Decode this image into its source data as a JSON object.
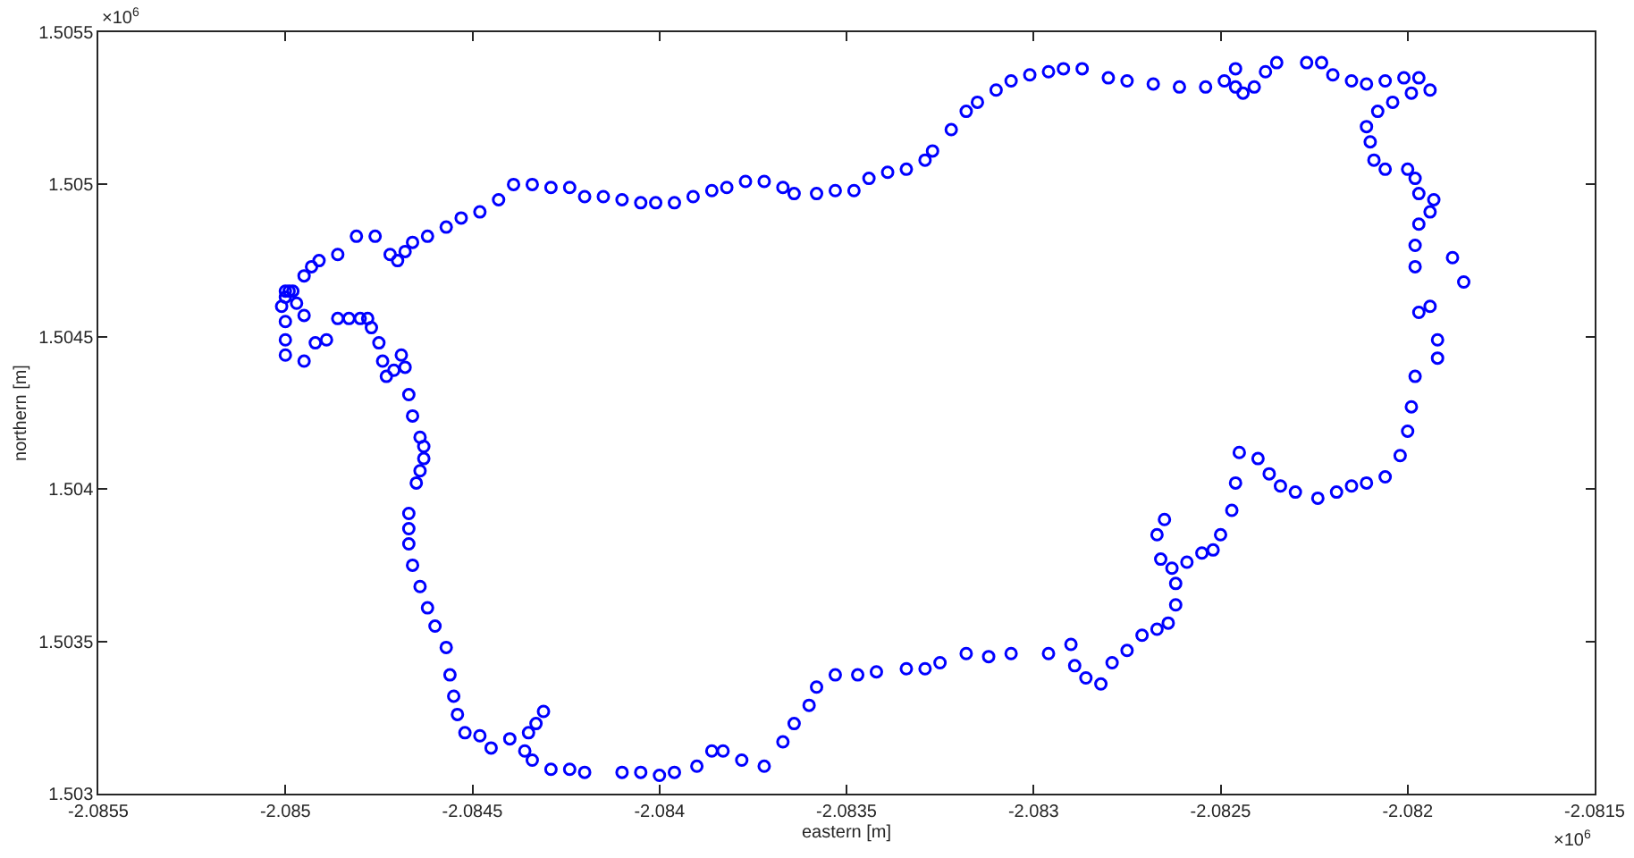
{
  "chart_data": {
    "type": "scatter",
    "xlabel": "eastern [m]",
    "ylabel": "northern [m]",
    "annotations": [
      "×10$^{6}$",
      "×10$^{6}$"
    ],
    "marker": "circle",
    "grid": false,
    "xlim": [
      -2.0855,
      -2.0815
    ],
    "xticks": [
      -2.0855,
      -2.085,
      -2.0845,
      -2.084,
      -2.0835,
      -2.083,
      -2.0825,
      -2.082,
      -2.0815
    ],
    "ylim": [
      1.503,
      1.5055
    ],
    "yticks": [
      1.503,
      1.5035,
      1.504,
      1.5045,
      1.505,
      1.5055
    ],
    "series": [
      {
        "color": "#0000ff",
        "x": [
          -2.085,
          -2.08501,
          -2.085,
          -2.08499,
          -2.08497,
          -2.08495,
          -2.085,
          -2.085,
          -2.085,
          -2.08495,
          -2.08492,
          -2.08489,
          -2.08486,
          -2.08483,
          -2.0848,
          -2.08478,
          -2.08477,
          -2.08475,
          -2.08474,
          -2.08473,
          -2.08471,
          -2.08469,
          -2.08468,
          -2.08467,
          -2.08466,
          -2.08464,
          -2.08463,
          -2.08463,
          -2.08464,
          -2.08465,
          -2.08467,
          -2.08467,
          -2.08467,
          -2.08466,
          -2.08464,
          -2.08462,
          -2.0846,
          -2.08457,
          -2.08456,
          -2.08455,
          -2.08454,
          -2.08452,
          -2.08448,
          -2.08445,
          -2.0844,
          -2.08436,
          -2.08435,
          -2.08433,
          -2.08431,
          -2.08434,
          -2.08429,
          -2.08424,
          -2.0842,
          -2.0841,
          -2.08405,
          -2.084,
          -2.08396,
          -2.0839,
          -2.08386,
          -2.08383,
          -2.08378,
          -2.08372,
          -2.08367,
          -2.08364,
          -2.0836,
          -2.08358,
          -2.08353,
          -2.08347,
          -2.08342,
          -2.08334,
          -2.08329,
          -2.08325,
          -2.08318,
          -2.08312,
          -2.08306,
          -2.08296,
          -2.0829,
          -2.08289,
          -2.08286,
          -2.08282,
          -2.08279,
          -2.08275,
          -2.08271,
          -2.08267,
          -2.08264,
          -2.08262,
          -2.08262,
          -2.08263,
          -2.08266,
          -2.08267,
          -2.08265,
          -2.08259,
          -2.08255,
          -2.08252,
          -2.0825,
          -2.08247,
          -2.08246,
          -2.08245,
          -2.0824,
          -2.08237,
          -2.08234,
          -2.0823,
          -2.08224,
          -2.08219,
          -2.08215,
          -2.08211,
          -2.08206,
          -2.08202,
          -2.082,
          -2.08199,
          -2.08198,
          -2.08192,
          -2.08192,
          -2.08197,
          -2.08194,
          -2.08185,
          -2.08188,
          -2.08198,
          -2.08198,
          -2.08197,
          -2.08194,
          -2.08193,
          -2.08197,
          -2.08198,
          -2.082,
          -2.08206,
          -2.08209,
          -2.0821,
          -2.08211,
          -2.08208,
          -2.08204,
          -2.08199,
          -2.08194,
          -2.08197,
          -2.08201,
          -2.08206,
          -2.08211,
          -2.08215,
          -2.0822,
          -2.08223,
          -2.08227,
          -2.08235,
          -2.08238,
          -2.08241,
          -2.08244,
          -2.08246,
          -2.08246,
          -2.08249,
          -2.08254,
          -2.08261,
          -2.08268,
          -2.08275,
          -2.0828,
          -2.08287,
          -2.08292,
          -2.08296,
          -2.08301,
          -2.08306,
          -2.0831,
          -2.08315,
          -2.08318,
          -2.08322,
          -2.08327,
          -2.08329,
          -2.08334,
          -2.08339,
          -2.08344,
          -2.08348,
          -2.08353,
          -2.08358,
          -2.08364,
          -2.08367,
          -2.08372,
          -2.08377,
          -2.08382,
          -2.08386,
          -2.08391,
          -2.08396,
          -2.08401,
          -2.08405,
          -2.0841,
          -2.08415,
          -2.0842,
          -2.08424,
          -2.08429,
          -2.08434,
          -2.08439,
          -2.08443,
          -2.08448,
          -2.08453,
          -2.08457,
          -2.08462,
          -2.08466,
          -2.08468,
          -2.0847,
          -2.08472,
          -2.08476,
          -2.08481,
          -2.08486,
          -2.08491,
          -2.08493,
          -2.08495,
          -2.08498
        ],
        "values": [
          1.50463,
          1.5046,
          1.50465,
          1.50465,
          1.50461,
          1.50457,
          1.50455,
          1.50449,
          1.50444,
          1.50442,
          1.50448,
          1.50449,
          1.50456,
          1.50456,
          1.50456,
          1.50456,
          1.50453,
          1.50448,
          1.50442,
          1.50437,
          1.50439,
          1.50444,
          1.5044,
          1.50431,
          1.50424,
          1.50417,
          1.50414,
          1.5041,
          1.50406,
          1.50402,
          1.50392,
          1.50387,
          1.50382,
          1.50375,
          1.50368,
          1.50361,
          1.50355,
          1.50348,
          1.50339,
          1.50332,
          1.50326,
          1.5032,
          1.50319,
          1.50315,
          1.50318,
          1.50314,
          1.5032,
          1.50323,
          1.50327,
          1.50311,
          1.50308,
          1.50308,
          1.50307,
          1.50307,
          1.50307,
          1.50306,
          1.50307,
          1.50309,
          1.50314,
          1.50314,
          1.50311,
          1.50309,
          1.50317,
          1.50323,
          1.50329,
          1.50335,
          1.50339,
          1.50339,
          1.5034,
          1.50341,
          1.50341,
          1.50343,
          1.50346,
          1.50345,
          1.50346,
          1.50346,
          1.50349,
          1.50342,
          1.50338,
          1.50336,
          1.50343,
          1.50347,
          1.50352,
          1.50354,
          1.50356,
          1.50362,
          1.50369,
          1.50374,
          1.50377,
          1.50385,
          1.5039,
          1.50376,
          1.50379,
          1.5038,
          1.50385,
          1.50393,
          1.50402,
          1.50412,
          1.5041,
          1.50405,
          1.50401,
          1.50399,
          1.50397,
          1.50399,
          1.50401,
          1.50402,
          1.50404,
          1.50411,
          1.50419,
          1.50427,
          1.50437,
          1.50443,
          1.50449,
          1.50458,
          1.5046,
          1.50468,
          1.50476,
          1.50473,
          1.5048,
          1.50487,
          1.50491,
          1.50495,
          1.50497,
          1.50502,
          1.50505,
          1.50505,
          1.50508,
          1.50514,
          1.50519,
          1.50524,
          1.50527,
          1.5053,
          1.50531,
          1.50535,
          1.50535,
          1.50534,
          1.50533,
          1.50534,
          1.50536,
          1.5054,
          1.5054,
          1.5054,
          1.50537,
          1.50532,
          1.5053,
          1.50532,
          1.50538,
          1.50534,
          1.50532,
          1.50532,
          1.50533,
          1.50534,
          1.50535,
          1.50538,
          1.50538,
          1.50537,
          1.50536,
          1.50534,
          1.50531,
          1.50527,
          1.50524,
          1.50518,
          1.50511,
          1.50508,
          1.50505,
          1.50504,
          1.50502,
          1.50498,
          1.50498,
          1.50497,
          1.50497,
          1.50499,
          1.50501,
          1.50501,
          1.50499,
          1.50498,
          1.50496,
          1.50494,
          1.50494,
          1.50494,
          1.50495,
          1.50496,
          1.50496,
          1.50499,
          1.50499,
          1.505,
          1.505,
          1.50495,
          1.50491,
          1.50489,
          1.50486,
          1.50483,
          1.50481,
          1.50478,
          1.50475,
          1.50477,
          1.50483,
          1.50483,
          1.50477,
          1.50475,
          1.50473,
          1.5047,
          1.50465
        ]
      }
    ]
  }
}
